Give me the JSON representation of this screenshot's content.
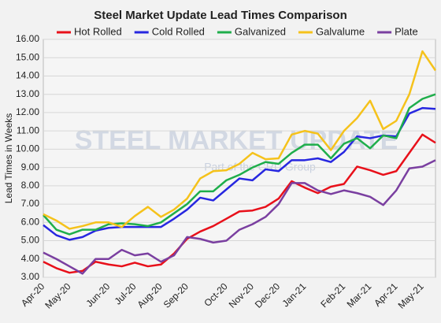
{
  "chart_data": {
    "type": "line",
    "title": "Steel Market Update Lead Times Comparison",
    "y_label": "Lead Times in Weeks",
    "watermark": "STEEL MARKET UPDATE",
    "watermark_sub": "Part of the CRU Group",
    "categories": [
      "Apr-20",
      null,
      "May-20",
      null,
      null,
      "Jun-20",
      null,
      "Jul-20",
      null,
      "Aug-20",
      null,
      "Sep-20",
      null,
      null,
      "Oct-20",
      null,
      "Nov-20",
      null,
      "Dec-20",
      null,
      "Jan-21",
      null,
      null,
      "Feb-21",
      null,
      "Mar-21",
      null,
      "Apr-21",
      null,
      "May-21",
      null
    ],
    "series": [
      {
        "name": "Hot Rolled",
        "color": "#e8101a",
        "values": [
          3.85,
          3.5,
          3.25,
          3.35,
          3.85,
          3.7,
          3.6,
          3.8,
          3.6,
          3.7,
          4.3,
          5.1,
          5.5,
          5.8,
          6.2,
          6.6,
          6.65,
          6.85,
          7.3,
          8.25,
          7.9,
          7.6,
          7.95,
          8.1,
          9.05,
          8.85,
          8.6,
          8.8,
          9.8,
          10.8,
          10.35
        ]
      },
      {
        "name": "Cold Rolled",
        "color": "#2727e0",
        "values": [
          5.85,
          5.3,
          5.05,
          5.2,
          5.55,
          5.7,
          5.75,
          5.75,
          5.75,
          5.75,
          6.2,
          6.7,
          7.35,
          7.2,
          7.8,
          8.4,
          8.3,
          8.9,
          8.8,
          9.4,
          9.4,
          9.5,
          9.3,
          9.85,
          10.7,
          10.6,
          10.75,
          10.7,
          11.95,
          12.25,
          12.2
        ]
      },
      {
        "name": "Galvanized",
        "color": "#1fae4b",
        "values": [
          6.4,
          5.6,
          5.35,
          5.6,
          5.6,
          5.9,
          5.95,
          5.9,
          5.8,
          6.0,
          6.5,
          7.0,
          7.7,
          7.7,
          8.3,
          8.6,
          9.0,
          9.3,
          9.2,
          9.8,
          10.25,
          10.25,
          9.5,
          10.3,
          10.6,
          10.05,
          10.75,
          10.6,
          12.25,
          12.75,
          13.0
        ]
      },
      {
        "name": "Galvalume",
        "color": "#f5c21b",
        "values": [
          6.45,
          6.1,
          5.65,
          5.8,
          6.0,
          6.0,
          5.75,
          6.35,
          6.85,
          6.3,
          6.7,
          7.3,
          8.4,
          8.8,
          8.85,
          9.2,
          9.8,
          9.45,
          9.5,
          10.8,
          11.0,
          10.85,
          9.95,
          11.0,
          11.7,
          12.65,
          11.1,
          11.55,
          13.0,
          15.35,
          14.3
        ]
      },
      {
        "name": "Plate",
        "color": "#7a3fa0",
        "values": [
          4.35,
          4.0,
          3.6,
          3.2,
          4.0,
          4.0,
          4.5,
          4.2,
          4.3,
          3.85,
          4.2,
          5.2,
          5.1,
          4.9,
          5.0,
          5.6,
          5.9,
          6.3,
          7.0,
          8.15,
          8.15,
          7.75,
          7.55,
          7.75,
          7.6,
          7.4,
          6.95,
          7.75,
          8.95,
          9.05,
          9.4
        ]
      }
    ],
    "ylim": [
      3,
      16
    ],
    "yticks": [
      {
        "value": 3,
        "label": "3.00"
      },
      {
        "value": 4,
        "label": "4.00"
      },
      {
        "value": 5,
        "label": "5.00"
      },
      {
        "value": 6,
        "label": "6.00"
      },
      {
        "value": 7,
        "label": "7.00"
      },
      {
        "value": 8,
        "label": "8.00"
      },
      {
        "value": 9,
        "label": "9.00"
      },
      {
        "value": 10,
        "label": "10.00"
      },
      {
        "value": 11,
        "label": "11.00"
      },
      {
        "value": 12,
        "label": "12.00"
      },
      {
        "value": 13,
        "label": "13.00"
      },
      {
        "value": 14,
        "label": "14.00"
      },
      {
        "value": 15,
        "label": "15.00"
      },
      {
        "value": 16,
        "label": "16.00"
      }
    ],
    "grid": true,
    "legend": "top"
  }
}
